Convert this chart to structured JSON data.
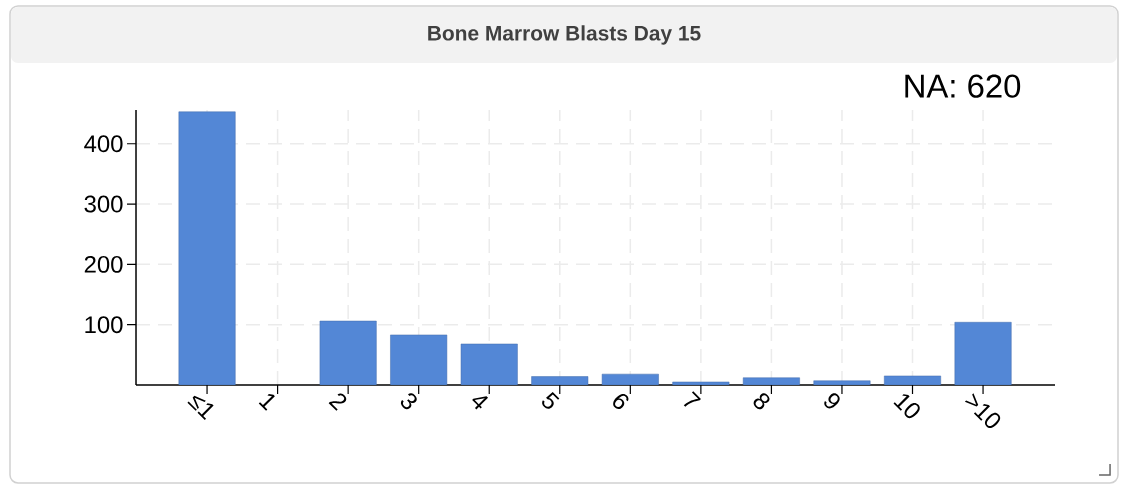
{
  "chart_data": {
    "type": "bar",
    "title": "Bone Marrow Blasts Day 15",
    "categories": [
      "≤1",
      "1",
      "2",
      "3",
      "4",
      "5",
      "6",
      "7",
      "8",
      "9",
      "10",
      ">10"
    ],
    "values": [
      453,
      null,
      106,
      83,
      68,
      14,
      18,
      5,
      12,
      7,
      15,
      104
    ],
    "color": "#5387d6",
    "ylim": [
      0,
      456
    ],
    "yticks": [
      100,
      200,
      300,
      400
    ],
    "grid": true,
    "annotations": [
      "NA: 620"
    ]
  }
}
